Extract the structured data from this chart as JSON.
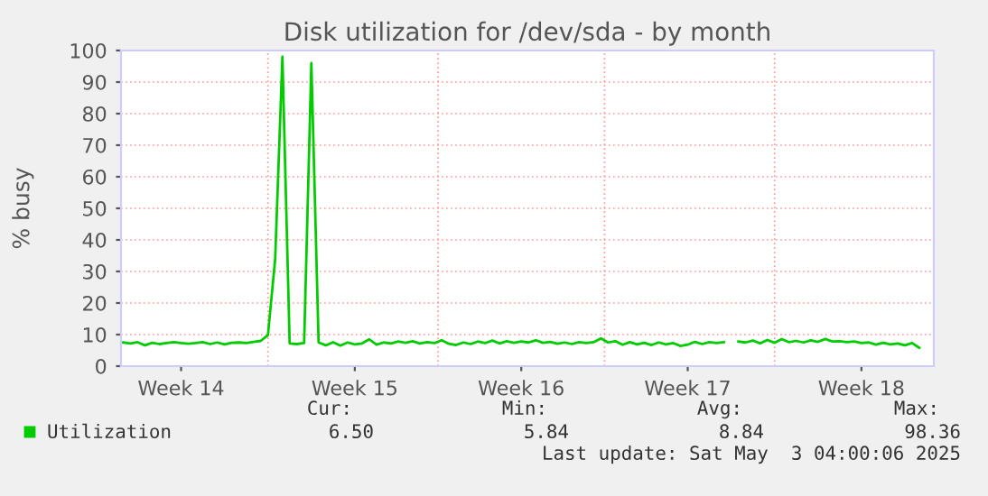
{
  "chart_data": {
    "type": "line",
    "title": "Disk utilization for /dev/sda - by month",
    "ylabel": "% busy",
    "ylim": [
      0,
      100
    ],
    "yticks": [
      0,
      10,
      20,
      30,
      40,
      50,
      60,
      70,
      80,
      90,
      100
    ],
    "categories": [
      null,
      null,
      null,
      null,
      null,
      null,
      null,
      null,
      "Week 14",
      null,
      null,
      null,
      null,
      null,
      null,
      null,
      null,
      null,
      null,
      null,
      null,
      null,
      null,
      null,
      null,
      null,
      null,
      null,
      null,
      null,
      null,
      null,
      "Week 15",
      null,
      null,
      null,
      null,
      null,
      null,
      null,
      null,
      null,
      null,
      null,
      null,
      null,
      null,
      null,
      null,
      null,
      null,
      null,
      null,
      null,
      null,
      "Week 16",
      null,
      null,
      null,
      null,
      null,
      null,
      null,
      null,
      null,
      null,
      null,
      null,
      null,
      null,
      null,
      null,
      null,
      null,
      null,
      null,
      null,
      null,
      "Week 17",
      null,
      null,
      null,
      null,
      null,
      null,
      null,
      null,
      null,
      null,
      null,
      null,
      null,
      null,
      null,
      null,
      null,
      null,
      null,
      null,
      null,
      null,
      null,
      "Week 18",
      null,
      null,
      null,
      null,
      null,
      null,
      null,
      null
    ],
    "grid": true,
    "legend": "bottom",
    "annotations": [
      "Cur:",
      "Min:",
      "Avg:",
      "Max:",
      "6.50",
      "5.84",
      "8.84",
      "98.36",
      "Last update: Sat May  3 04:00:06 2025"
    ],
    "series": [
      {
        "name": "Utilization",
        "color": "#00cc00",
        "values": [
          7.5,
          7.2,
          7.6,
          6.6,
          7.4,
          7.0,
          7.3,
          7.6,
          7.3,
          7.1,
          7.3,
          7.6,
          7.0,
          7.5,
          6.9,
          7.4,
          7.5,
          7.3,
          7.7,
          8.0,
          9.8,
          34,
          98,
          7.2,
          7.0,
          7.3,
          96,
          7.5,
          6.6,
          7.6,
          6.5,
          7.5,
          6.9,
          7.2,
          8.5,
          6.8,
          7.5,
          7.2,
          7.8,
          7.4,
          7.9,
          7.2,
          7.6,
          7.3,
          8.2,
          7.1,
          6.7,
          7.5,
          7.0,
          7.8,
          7.3,
          8.1,
          7.2,
          7.9,
          7.4,
          7.8,
          7.5,
          8.2,
          7.4,
          7.7,
          7.1,
          7.5,
          7.0,
          7.6,
          7.3,
          7.6,
          8.8,
          7.5,
          7.9,
          6.8,
          7.6,
          6.9,
          7.4,
          6.7,
          7.5,
          6.9,
          7.3,
          6.4,
          6.8,
          7.7,
          7.0,
          7.6,
          7.3,
          7.6,
          null,
          7.8,
          7.5,
          8.1,
          7.2,
          8.3,
          7.4,
          8.6,
          7.6,
          8.0,
          7.5,
          8.2,
          7.7,
          8.6,
          7.8,
          7.9,
          7.6,
          7.8,
          7.3,
          7.5,
          6.8,
          7.4,
          6.9,
          7.2,
          6.6,
          7.3,
          5.8
        ]
      }
    ]
  }
}
